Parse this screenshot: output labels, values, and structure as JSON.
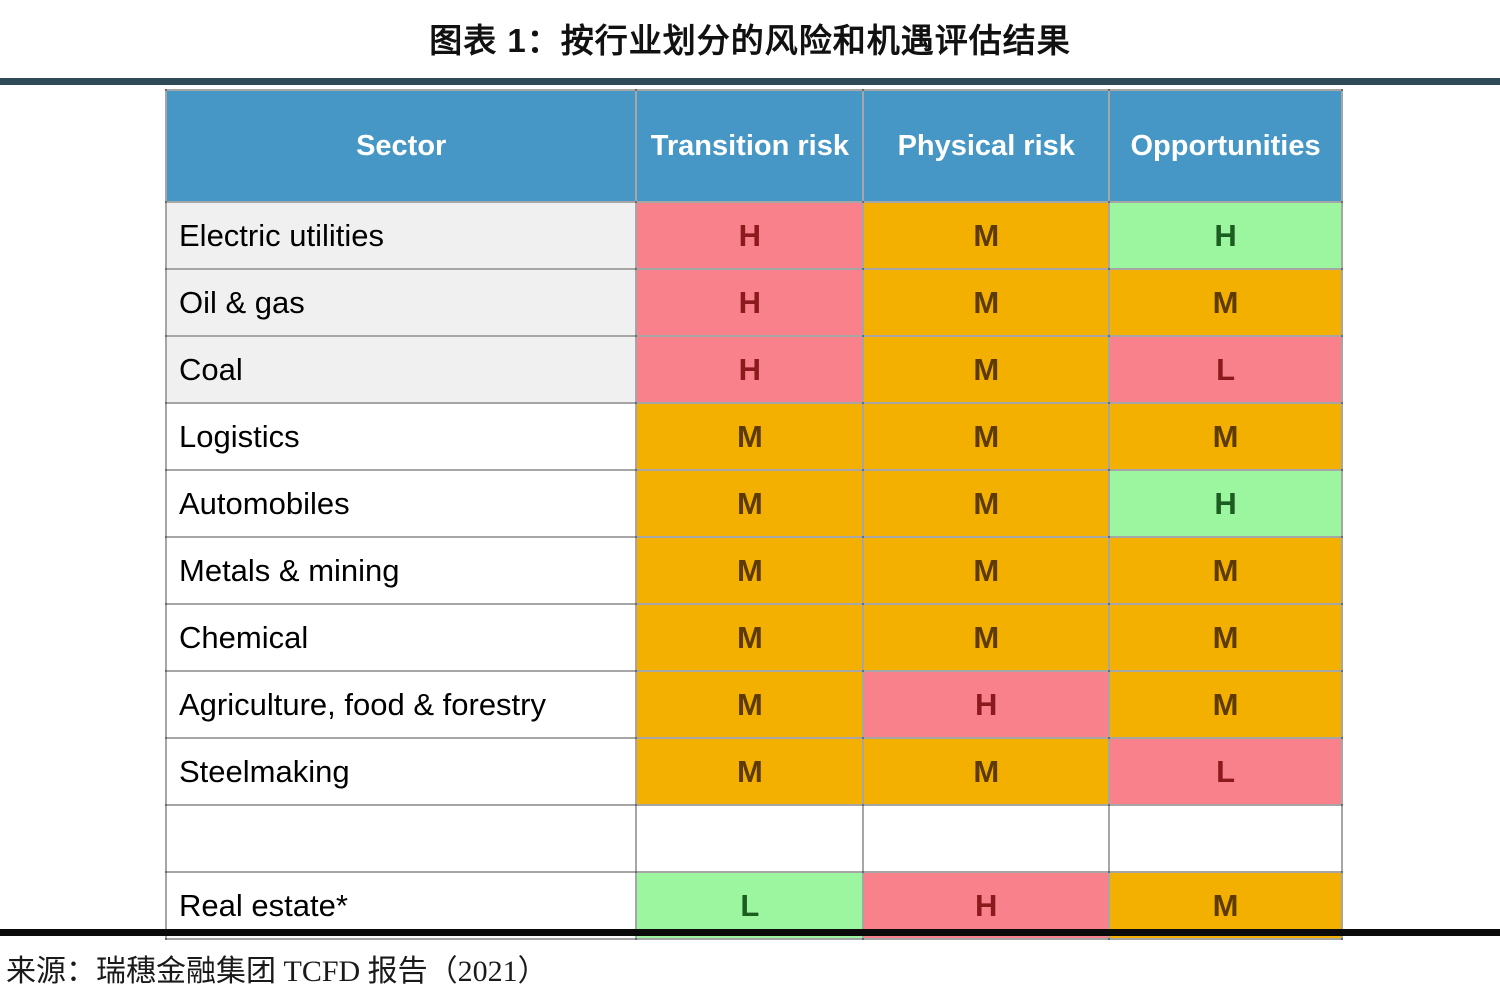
{
  "figure": {
    "title": "图表 1：按行业划分的风险和机遇评估结果",
    "source": "来源：瑞穗金融集团 TCFD 报告（2021）"
  },
  "colors": {
    "header_bg": "#4697c6",
    "header_text": "#ffffff",
    "shaded_row_bg": "#f0f0f0",
    "title_rule": "#2e4a58",
    "source_rule": "#0b0b0b",
    "tones": {
      "red": {
        "bg": "#f9818c",
        "text": "#8b1a1c"
      },
      "orange": {
        "bg": "#f4b000",
        "text": "#5d3b00"
      },
      "green": {
        "bg": "#9cf6a0",
        "text": "#1d5c20"
      }
    }
  },
  "chart_data": {
    "type": "table",
    "title": "图表 1：按行业划分的风险和机遇评估结果",
    "columns": [
      "Sector",
      "Transition risk",
      "Physical risk",
      "Opportunities"
    ],
    "rows": [
      {
        "sector": "Electric utilities",
        "shaded": true,
        "values": [
          {
            "label": "H",
            "tone": "red"
          },
          {
            "label": "M",
            "tone": "orange"
          },
          {
            "label": "H",
            "tone": "green"
          }
        ]
      },
      {
        "sector": "Oil & gas",
        "shaded": true,
        "values": [
          {
            "label": "H",
            "tone": "red"
          },
          {
            "label": "M",
            "tone": "orange"
          },
          {
            "label": "M",
            "tone": "orange"
          }
        ]
      },
      {
        "sector": "Coal",
        "shaded": true,
        "values": [
          {
            "label": "H",
            "tone": "red"
          },
          {
            "label": "M",
            "tone": "orange"
          },
          {
            "label": "L",
            "tone": "red"
          }
        ]
      },
      {
        "sector": "Logistics",
        "values": [
          {
            "label": "M",
            "tone": "orange"
          },
          {
            "label": "M",
            "tone": "orange"
          },
          {
            "label": "M",
            "tone": "orange"
          }
        ]
      },
      {
        "sector": "Automobiles",
        "values": [
          {
            "label": "M",
            "tone": "orange"
          },
          {
            "label": "M",
            "tone": "orange"
          },
          {
            "label": "H",
            "tone": "green"
          }
        ]
      },
      {
        "sector": "Metals & mining",
        "values": [
          {
            "label": "M",
            "tone": "orange"
          },
          {
            "label": "M",
            "tone": "orange"
          },
          {
            "label": "M",
            "tone": "orange"
          }
        ]
      },
      {
        "sector": "Chemical",
        "values": [
          {
            "label": "M",
            "tone": "orange"
          },
          {
            "label": "M",
            "tone": "orange"
          },
          {
            "label": "M",
            "tone": "orange"
          }
        ]
      },
      {
        "sector": "Agriculture, food & forestry",
        "values": [
          {
            "label": "M",
            "tone": "orange"
          },
          {
            "label": "H",
            "tone": "red"
          },
          {
            "label": "M",
            "tone": "orange"
          }
        ]
      },
      {
        "sector": "Steelmaking",
        "values": [
          {
            "label": "M",
            "tone": "orange"
          },
          {
            "label": "M",
            "tone": "orange"
          },
          {
            "label": "L",
            "tone": "red"
          }
        ]
      },
      {
        "spacer": true
      },
      {
        "sector": "Real estate*",
        "values": [
          {
            "label": "L",
            "tone": "green"
          },
          {
            "label": "H",
            "tone": "red"
          },
          {
            "label": "M",
            "tone": "orange"
          }
        ]
      }
    ]
  }
}
